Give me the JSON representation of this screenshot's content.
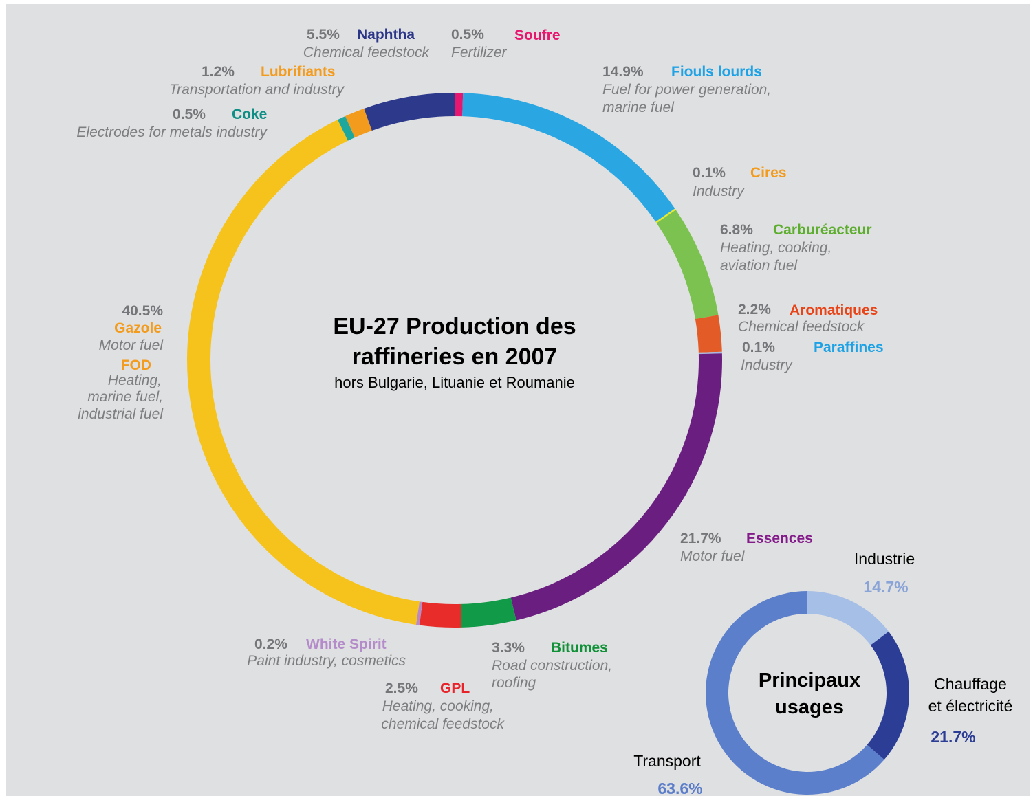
{
  "chart_data": [
    {
      "type": "pie",
      "title": "EU-27 Production des raffineries en 2007",
      "subtitle": "hors Bulgarie, Lituanie et Roumanie",
      "slices": [
        {
          "pct_label": "0.5%",
          "label": "Soufre",
          "desc": [
            "Fertilizer"
          ],
          "value": 0.5,
          "color": "#e6176e",
          "name_color": "#e6176e"
        },
        {
          "pct_label": "14.9%",
          "label": "Fiouls lourds",
          "desc": [
            "Fuel for power generation,",
            "marine fuel"
          ],
          "value": 14.9,
          "color": "#2aa7e2",
          "name_color": "#1ea2e6"
        },
        {
          "pct_label": "0.1%",
          "label": "Cires",
          "desc": [
            "Industry"
          ],
          "value": 0.1,
          "color": "#e8ea2a",
          "name_color": "#f39b1d"
        },
        {
          "pct_label": "6.8%",
          "label": "Carburéacteur",
          "desc": [
            "Heating, cooking,",
            "aviation fuel"
          ],
          "value": 6.8,
          "color": "#7cc251",
          "name_color": "#5dad2f"
        },
        {
          "pct_label": "2.2%",
          "label": "Aromatiques",
          "desc": [
            "Chemical feedstock"
          ],
          "value": 2.2,
          "color": "#e35c27",
          "name_color": "#e84418"
        },
        {
          "pct_label": "0.1%",
          "label": "Paraffines",
          "desc": [
            "Industry"
          ],
          "value": 0.1,
          "color": "#a9b9e0",
          "name_color": "#1ea2e6"
        },
        {
          "pct_label": "21.7%",
          "label": "Essences",
          "desc": [
            "Motor fuel"
          ],
          "value": 21.7,
          "color": "#6a1f80",
          "name_color": "#841b8a"
        },
        {
          "pct_label": "3.3%",
          "label": "Bitumes",
          "desc": [
            "Road construction,",
            "roofing"
          ],
          "value": 3.3,
          "color": "#119a47",
          "name_color": "#109138"
        },
        {
          "pct_label": "2.5%",
          "label": "GPL",
          "desc": [
            "Heating, cooking,",
            "chemical feedstock"
          ],
          "value": 2.5,
          "color": "#e82c2a",
          "name_color": "#e8232a"
        },
        {
          "pct_label": "0.2%",
          "label": "White Spirit",
          "desc": [
            "Paint industry, cosmetics"
          ],
          "value": 0.2,
          "color": "#b889c4",
          "name_color": "#b58cca"
        },
        {
          "pct_label": "40.5%",
          "label": "Gazole",
          "label2": "FOD",
          "desc": [
            "Motor fuel"
          ],
          "desc2": [
            "Heating,",
            "marine fuel,",
            "industrial fuel"
          ],
          "value": 40.5,
          "color": "#f6c31d",
          "name_color": "#f39b1d"
        },
        {
          "pct_label": "0.5%",
          "label": "Coke",
          "desc": [
            "Electrodes for metals industry"
          ],
          "value": 0.5,
          "color": "#1ea79c",
          "name_color": "#0e8f85"
        },
        {
          "pct_label": "1.2%",
          "label": "Lubrifiants",
          "desc": [
            "Transportation and industry"
          ],
          "value": 1.2,
          "color": "#f39b1d",
          "name_color": "#f39b1d"
        },
        {
          "pct_label": "5.5%",
          "label": "Naphtha",
          "desc": [
            "Chemical feedstock"
          ],
          "value": 5.5,
          "color": "#2d3a8c",
          "name_color": "#2c3689"
        }
      ]
    },
    {
      "type": "pie",
      "title": "Principaux usages",
      "slices": [
        {
          "label": "Industrie",
          "pct_label": "14.7%",
          "value": 14.7,
          "color": "#a6bfe6",
          "pct_color": "#8aa4d8"
        },
        {
          "label": "Chauffage et électricité",
          "pct_label": "21.7%",
          "value": 21.7,
          "color": "#2c3d95",
          "pct_color": "#2c3d95"
        },
        {
          "label": "Transport",
          "pct_label": "63.6%",
          "value": 63.6,
          "color": "#5b7fcb",
          "pct_color": "#5a7cc9"
        }
      ]
    }
  ],
  "usage_labels": {
    "chauffage_line1": "Chauffage",
    "chauffage_line2": "et électricité"
  },
  "center_title": {
    "line1": "EU-27 Production des",
    "line2": "raffineries en 2007"
  },
  "usage_title": {
    "line1": "Principaux",
    "line2": "usages"
  }
}
